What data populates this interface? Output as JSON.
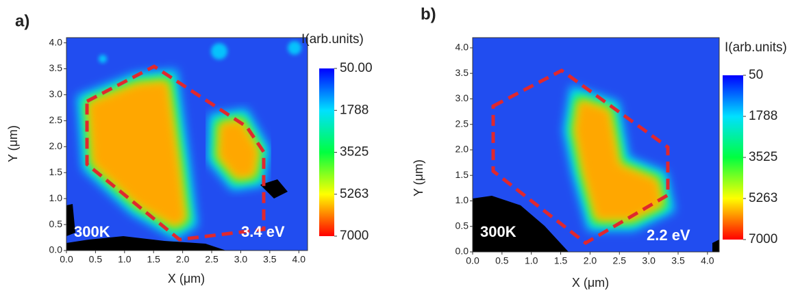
{
  "chart_data": [
    {
      "type": "heatmap",
      "panel_label": "a)",
      "x_label": "X (μm)",
      "y_label": "Y (μm)",
      "xlim": [
        0,
        4.15
      ],
      "ylim": [
        0,
        4.1
      ],
      "xticks": [
        {
          "value": 0,
          "label": "0.0"
        },
        {
          "value": 0.5,
          "label": "0.5"
        },
        {
          "value": 1,
          "label": "1.0"
        },
        {
          "value": 1.5,
          "label": "1.5"
        },
        {
          "value": 2,
          "label": "2.0"
        },
        {
          "value": 2.5,
          "label": "2.5"
        },
        {
          "value": 3,
          "label": "3.0"
        },
        {
          "value": 3.5,
          "label": "3.5"
        },
        {
          "value": 4,
          "label": "4.0"
        }
      ],
      "yticks": [
        {
          "value": 0,
          "label": "0.0"
        },
        {
          "value": 0.5,
          "label": "0.5"
        },
        {
          "value": 1,
          "label": "1.0"
        },
        {
          "value": 1.5,
          "label": "1.5"
        },
        {
          "value": 2,
          "label": "2.0"
        },
        {
          "value": 2.5,
          "label": "2.5"
        },
        {
          "value": 3,
          "label": "3.0"
        },
        {
          "value": 3.5,
          "label": "3.5"
        },
        {
          "value": 4,
          "label": "4.0"
        }
      ],
      "colorbar_title": "I(arb.units)",
      "clim": [
        50,
        7000
      ],
      "cticks": [
        {
          "value": 50,
          "label": "50.00"
        },
        1788,
        3525,
        5263,
        7000
      ],
      "colormap": [
        "#0000ff",
        "#00e0ff",
        "#00ff40",
        "#ffff00",
        "#ff0000"
      ],
      "annotations": [
        "300K",
        "3.4 eV"
      ]
    },
    {
      "type": "heatmap",
      "panel_label": "b)",
      "x_label": "X (μm)",
      "y_label": "Y (μm)",
      "xlim": [
        0,
        4.2
      ],
      "ylim": [
        0,
        4.2
      ],
      "xticks": [
        {
          "value": 0,
          "label": "0.0"
        },
        {
          "value": 0.5,
          "label": "0.5"
        },
        {
          "value": 1,
          "label": "1.0"
        },
        {
          "value": 1.5,
          "label": "1.5"
        },
        {
          "value": 2,
          "label": "2.0"
        },
        {
          "value": 2.5,
          "label": "2.5"
        },
        {
          "value": 3,
          "label": "3.0"
        },
        {
          "value": 3.5,
          "label": "3.5"
        },
        {
          "value": 4,
          "label": "4.0"
        }
      ],
      "yticks": [
        {
          "value": 0,
          "label": "0.0"
        },
        {
          "value": 0.5,
          "label": "0.5"
        },
        {
          "value": 1,
          "label": "1.0"
        },
        {
          "value": 1.5,
          "label": "1.5"
        },
        {
          "value": 2,
          "label": "2.0"
        },
        {
          "value": 2.5,
          "label": "2.5"
        },
        {
          "value": 3,
          "label": "3.0"
        },
        {
          "value": 3.5,
          "label": "3.5"
        },
        {
          "value": 4,
          "label": "4.0"
        }
      ],
      "colorbar_title": "I(arb.units)",
      "clim": [
        50,
        7000
      ],
      "cticks": [
        50,
        1788,
        3525,
        5263,
        7000
      ],
      "colormap": [
        "#0000ff",
        "#00e0ff",
        "#00ff40",
        "#ffff00",
        "#ff0000"
      ],
      "annotations": [
        "300K",
        "2.2 eV"
      ]
    }
  ]
}
